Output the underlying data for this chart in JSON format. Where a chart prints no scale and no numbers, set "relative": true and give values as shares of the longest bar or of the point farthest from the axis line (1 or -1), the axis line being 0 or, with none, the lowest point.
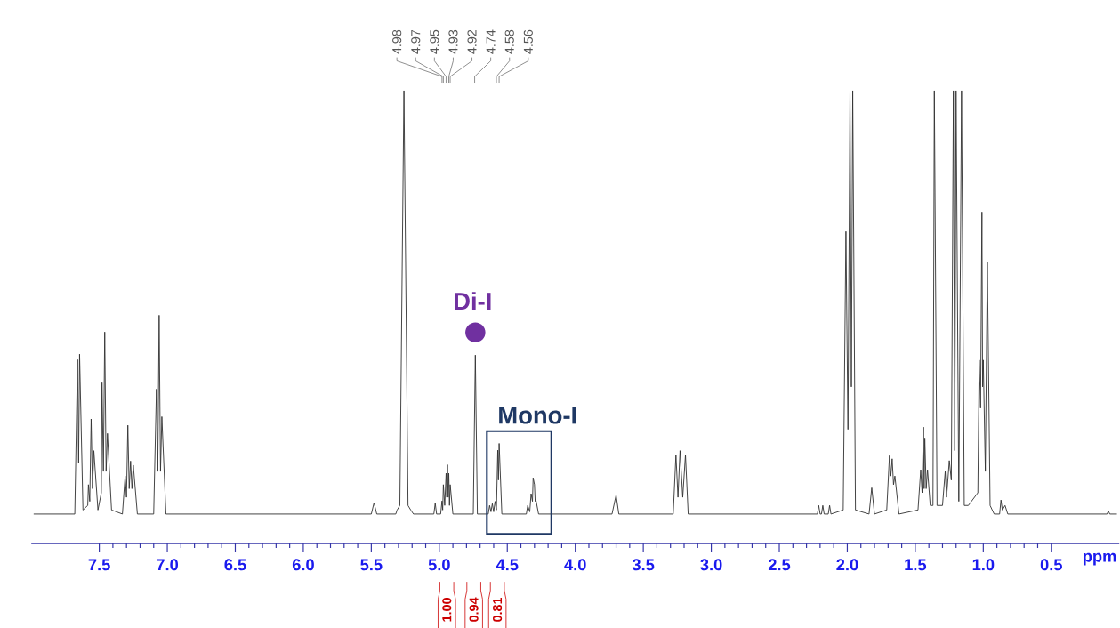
{
  "chart_data": {
    "type": "line",
    "relative": true,
    "xlabel": "ppm",
    "xlim": [
      8.0,
      0.0
    ],
    "xticks": [
      7.5,
      {
        "value": 7.0,
        "label": "7.0"
      },
      6.5,
      {
        "value": 6.0,
        "label": "6.0"
      },
      5.5,
      {
        "value": 5.0,
        "label": "5.0"
      },
      4.5,
      {
        "value": 4.0,
        "label": "4.0"
      },
      3.5,
      {
        "value": 3.0,
        "label": "3.0"
      },
      2.5,
      {
        "value": 2.0,
        "label": "2.0"
      },
      1.5,
      {
        "value": 1.0,
        "label": "1.0"
      },
      0.5
    ],
    "series": [
      {
        "color": "#333333",
        "x": [
          7.98,
          7.68,
          7.66,
          7.652,
          7.645,
          7.62,
          7.585,
          7.58,
          7.57,
          7.56,
          7.55,
          7.54,
          7.51,
          7.485,
          7.48,
          7.47,
          7.46,
          7.45,
          7.44,
          7.41,
          7.33,
          7.31,
          7.3,
          7.29,
          7.28,
          7.27,
          7.26,
          7.25,
          7.22,
          7.1,
          7.08,
          7.07,
          7.06,
          7.05,
          7.04,
          7.01,
          5.5,
          5.48,
          5.46,
          5.32,
          5.31,
          5.29,
          5.26,
          5.23,
          5.21,
          5.19,
          5.04,
          5.03,
          5.02,
          4.99,
          4.98,
          4.975,
          4.97,
          4.96,
          4.95,
          4.945,
          4.94,
          4.935,
          4.93,
          4.925,
          4.92,
          4.9,
          4.75,
          4.735,
          4.72,
          4.64,
          4.63,
          4.62,
          4.61,
          4.6,
          4.59,
          4.58,
          4.57,
          4.565,
          4.56,
          4.54,
          4.36,
          4.35,
          4.335,
          4.325,
          4.315,
          4.31,
          4.3,
          4.295,
          4.29,
          4.27,
          3.73,
          3.7,
          3.68,
          3.28,
          3.26,
          3.245,
          3.23,
          3.21,
          3.19,
          3.17,
          2.22,
          2.21,
          2.2,
          2.19,
          2.18,
          2.17,
          2.14,
          2.13,
          2.12,
          2.03,
          2.01,
          1.995,
          1.98,
          1.97,
          1.96,
          1.94,
          1.84,
          1.82,
          1.8,
          1.71,
          1.69,
          1.68,
          1.67,
          1.66,
          1.65,
          1.62,
          1.48,
          1.46,
          1.45,
          1.44,
          1.435,
          1.43,
          1.42,
          1.41,
          1.39,
          1.37,
          1.36,
          1.34,
          1.3,
          1.28,
          1.27,
          1.25,
          1.235,
          1.22,
          1.21,
          1.2,
          1.18,
          1.16,
          1.14,
          1.11,
          1.04,
          1.03,
          1.02,
          1.01,
          1.005,
          1.0,
          0.985,
          0.97,
          0.95,
          0.92,
          0.88,
          0.87,
          0.86,
          0.84,
          0.82,
          0.09,
          0.08,
          0.07,
          0.02
        ],
        "values": [
          0.065,
          0.065,
          0.406,
          0.177,
          0.418,
          0.074,
          0.084,
          0.13,
          0.093,
          0.275,
          0.121,
          0.205,
          0.074,
          0.112,
          0.355,
          0.159,
          0.467,
          0.159,
          0.243,
          0.074,
          0.065,
          0.149,
          0.102,
          0.261,
          0.121,
          0.182,
          0.121,
          0.173,
          0.065,
          0.065,
          0.341,
          0.159,
          0.504,
          0.159,
          0.28,
          0.065,
          0.065,
          0.09,
          0.065,
          0.065,
          0.074,
          0.084,
          1,
          0.084,
          0.074,
          0.065,
          0.065,
          0.089,
          0.065,
          0.065,
          0.094,
          0.074,
          0.13,
          0.084,
          0.155,
          0.102,
          0.174,
          0.102,
          0.155,
          0.084,
          0.13,
          0.065,
          0.065,
          0.416,
          0.065,
          0.065,
          0.084,
          0.07,
          0.088,
          0.07,
          0.093,
          0.074,
          0.206,
          0.14,
          0.221,
          0.065,
          0.065,
          0.084,
          0.07,
          0.11,
          0.093,
          0.145,
          0.13,
          0.093,
          0.097,
          0.065,
          0.065,
          0.107,
          0.065,
          0.065,
          0.196,
          0.102,
          0.205,
          0.102,
          0.196,
          0.065,
          0.065,
          0.084,
          0.065,
          0.065,
          0.084,
          0.065,
          0.065,
          0.084,
          0.065,
          0.074,
          0.689,
          0.252,
          1,
          0.346,
          1,
          0.074,
          0.065,
          0.123,
          0.065,
          0.074,
          0.194,
          0.149,
          0.187,
          0.13,
          0.149,
          0.065,
          0.074,
          0.163,
          0.112,
          0.257,
          0.121,
          0.233,
          0.121,
          0.163,
          0.084,
          0.084,
          1,
          0.084,
          0.084,
          0.159,
          0.102,
          0.183,
          0.14,
          1,
          0.205,
          1,
          0.093,
          1,
          0.084,
          0.084,
          0.112,
          0.405,
          0.299,
          0.732,
          0.346,
          0.405,
          0.159,
          0.622,
          0.084,
          0.065,
          0.065,
          0.096,
          0.074,
          0.084,
          0.065,
          0.065,
          0.072,
          0.065,
          0.065
        ]
      }
    ],
    "annotations": [
      {
        "text": "Di-I",
        "x": 4.735,
        "y": 0.416
      },
      {
        "text": "4.98",
        "x": 4.98
      },
      {
        "text": "4.97",
        "x": 4.97
      },
      {
        "text": "4.95",
        "x": 4.95
      },
      {
        "text": "4.93",
        "x": 4.93
      },
      {
        "text": "4.92",
        "x": 4.92
      },
      {
        "text": "4.74",
        "x": 4.74
      },
      {
        "text": "4.58",
        "x": 4.58
      },
      {
        "text": "4.56",
        "x": 4.56
      },
      "Mono-I",
      "1.00",
      "0.94",
      "0.81"
    ]
  }
}
